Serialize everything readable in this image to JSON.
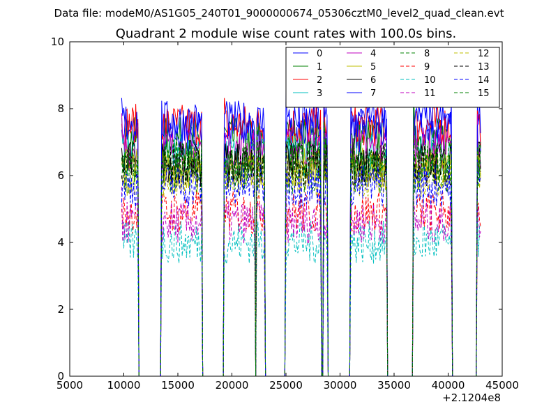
{
  "suptitle": "Data file: modeM0/AS1G05_240T01_9000000674_05306cztM0_level2_quad_clean.evt",
  "chart_data": {
    "type": "line",
    "title": "Quadrant 2 module wise count rates with 100.0s bins.",
    "xlabel": "",
    "ylabel": "",
    "xlim": [
      5000,
      45000
    ],
    "ylim": [
      0,
      10
    ],
    "x_ticks": [
      "5000",
      "10000",
      "15000",
      "20000",
      "25000",
      "30000",
      "35000",
      "40000",
      "45000"
    ],
    "y_ticks": [
      "0",
      "2",
      "4",
      "6",
      "8",
      "10"
    ],
    "x_offset_label": "+2.1204e8",
    "grid": false,
    "legend": {
      "placement": "top-right",
      "columns": 4
    },
    "segments": [
      [
        9800,
        11300
      ],
      [
        13500,
        17200
      ],
      [
        19300,
        22100
      ],
      [
        22300,
        23000
      ],
      [
        25000,
        28200
      ],
      [
        28500,
        28800
      ],
      [
        31000,
        34300
      ],
      [
        36800,
        40300
      ],
      [
        42700,
        43000
      ]
    ],
    "series": [
      {
        "name": "0",
        "color": "#0000ff",
        "dash": "solid",
        "level": 7.3
      },
      {
        "name": "1",
        "color": "#008000",
        "dash": "solid",
        "level": 7.1
      },
      {
        "name": "2",
        "color": "#ff0000",
        "dash": "solid",
        "level": 7.5
      },
      {
        "name": "3",
        "color": "#00bfbf",
        "dash": "solid",
        "level": 6.6
      },
      {
        "name": "4",
        "color": "#bf00bf",
        "dash": "solid",
        "level": 6.8
      },
      {
        "name": "5",
        "color": "#bfbf00",
        "dash": "solid",
        "level": 6.2
      },
      {
        "name": "6",
        "color": "#000000",
        "dash": "solid",
        "level": 6.4
      },
      {
        "name": "7",
        "color": "#0000ff",
        "dash": "solid",
        "level": 7.6
      },
      {
        "name": "8",
        "color": "#008000",
        "dash": "dashed",
        "level": 6.1
      },
      {
        "name": "9",
        "color": "#ff0000",
        "dash": "dashed",
        "level": 4.9
      },
      {
        "name": "10",
        "color": "#00bfbf",
        "dash": "dashed",
        "level": 4.0
      },
      {
        "name": "11",
        "color": "#bf00bf",
        "dash": "dashed",
        "level": 4.6
      },
      {
        "name": "12",
        "color": "#bfbf00",
        "dash": "dashed",
        "level": 6.0
      },
      {
        "name": "13",
        "color": "#000000",
        "dash": "dashed",
        "level": 6.3
      },
      {
        "name": "14",
        "color": "#0000ff",
        "dash": "dashed",
        "level": 5.7
      },
      {
        "name": "15",
        "color": "#008000",
        "dash": "dashed",
        "level": 6.5
      }
    ]
  }
}
